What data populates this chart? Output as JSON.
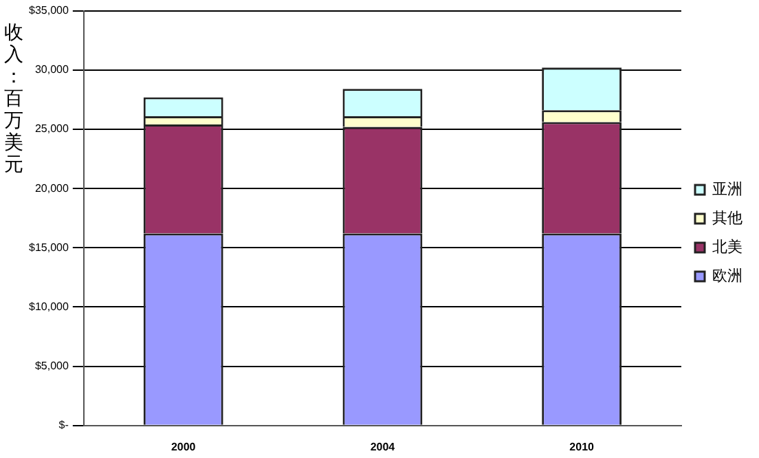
{
  "chart_data": {
    "type": "bar",
    "stacked": true,
    "ylabel": "收入：百万美元",
    "categories": [
      "2000",
      "2004",
      "2010"
    ],
    "series": [
      {
        "name": "欧洲",
        "color": "#9999ff",
        "values": [
          16200,
          16200,
          16200
        ]
      },
      {
        "name": "北美",
        "color": "#993366",
        "values": [
          9200,
          9000,
          9400
        ]
      },
      {
        "name": "其他",
        "color": "#ffffcc",
        "values": [
          700,
          900,
          1000
        ]
      },
      {
        "name": "亚洲",
        "color": "#ccffff",
        "values": [
          1600,
          2300,
          3600
        ]
      }
    ],
    "ylim": [
      0,
      35000
    ],
    "yticks": [
      {
        "value": 0,
        "label": "$-"
      },
      {
        "value": 5000,
        "label": "$5,000"
      },
      {
        "value": 10000,
        "label": "$10,000"
      },
      {
        "value": 15000,
        "label": "$15,000"
      },
      {
        "value": 20000,
        "label": "20,000"
      },
      {
        "value": 25000,
        "label": "25,000"
      },
      {
        "value": 30000,
        "label": "30,000"
      },
      {
        "value": 35000,
        "label": "$35,000"
      }
    ],
    "grid": "y",
    "legend": "right"
  }
}
